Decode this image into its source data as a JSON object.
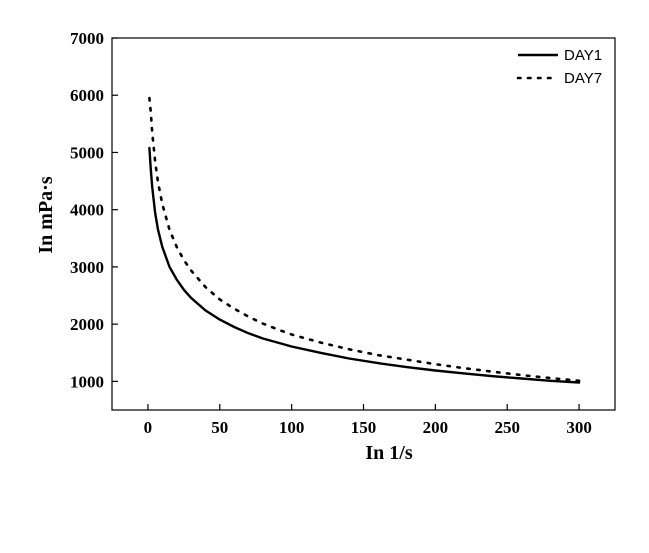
{
  "chart_data": {
    "type": "line",
    "title": "",
    "xlabel": "In 1/s",
    "ylabel": "In mPa·s",
    "xlim": [
      -25,
      325
    ],
    "ylim": [
      500,
      7000
    ],
    "xticks": [
      0,
      50,
      100,
      150,
      200,
      250,
      300
    ],
    "yticks": [
      1000,
      2000,
      3000,
      4000,
      5000,
      6000,
      7000
    ],
    "grid": false,
    "legend_position": "top-right",
    "series": [
      {
        "name": "DAY1",
        "style": "solid",
        "color": "#000000",
        "x": [
          1,
          2,
          3,
          5,
          7,
          10,
          15,
          20,
          25,
          30,
          40,
          50,
          60,
          70,
          80,
          90,
          100,
          120,
          140,
          160,
          180,
          200,
          220,
          240,
          260,
          280,
          300
        ],
        "y": [
          5080,
          4700,
          4400,
          3950,
          3650,
          3350,
          3000,
          2780,
          2600,
          2460,
          2240,
          2080,
          1950,
          1840,
          1750,
          1680,
          1610,
          1500,
          1400,
          1320,
          1250,
          1190,
          1140,
          1090,
          1050,
          1010,
          980
        ]
      },
      {
        "name": "DAY7",
        "style": "dotted",
        "color": "#000000",
        "x": [
          1,
          2,
          3,
          5,
          7,
          10,
          15,
          20,
          25,
          30,
          40,
          50,
          60,
          70,
          80,
          90,
          100,
          120,
          140,
          160,
          180,
          200,
          220,
          240,
          260,
          280,
          300
        ],
        "y": [
          5950,
          5700,
          5350,
          4850,
          4480,
          4100,
          3650,
          3350,
          3120,
          2940,
          2650,
          2430,
          2270,
          2130,
          2010,
          1910,
          1820,
          1680,
          1560,
          1460,
          1380,
          1300,
          1230,
          1170,
          1110,
          1060,
          1010
        ]
      }
    ]
  }
}
